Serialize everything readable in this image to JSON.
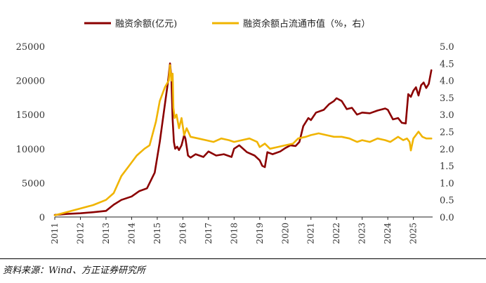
{
  "chart_data": {
    "type": "line",
    "title": "",
    "legend_position": "top",
    "grid": false,
    "x_axis": {
      "ticks": [
        "2011",
        "2012",
        "2013",
        "2014",
        "2015",
        "2016",
        "2017",
        "2018",
        "2019",
        "2020",
        "2021",
        "2022",
        "2023",
        "2024",
        "2025"
      ],
      "range": [
        2011.0,
        2025.75
      ]
    },
    "y_left": {
      "range": [
        0,
        25000
      ],
      "ticks": [
        "0",
        "5000",
        "10000",
        "15000",
        "20000",
        "25000"
      ]
    },
    "y_right": {
      "range": [
        0.0,
        5.0
      ],
      "ticks": [
        "0.0",
        "0.5",
        "1.0",
        "1.5",
        "2.0",
        "2.5",
        "3.0",
        "3.5",
        "4.0",
        "4.5",
        "5.0"
      ]
    },
    "series": [
      {
        "name": "融资余额(亿元)",
        "axis": "left",
        "color": "#8b0000",
        "x": [
          2011.0,
          2011.5,
          2012.0,
          2012.5,
          2013.0,
          2013.3,
          2013.6,
          2014.0,
          2014.3,
          2014.6,
          2014.9,
          2015.1,
          2015.3,
          2015.42,
          2015.5,
          2015.55,
          2015.6,
          2015.65,
          2015.7,
          2015.78,
          2015.85,
          2015.95,
          2016.05,
          2016.1,
          2016.2,
          2016.3,
          2016.5,
          2016.8,
          2017.0,
          2017.3,
          2017.6,
          2017.9,
          2018.0,
          2018.2,
          2018.5,
          2018.8,
          2019.0,
          2019.1,
          2019.2,
          2019.3,
          2019.5,
          2019.8,
          2020.0,
          2020.2,
          2020.4,
          2020.55,
          2020.7,
          2020.9,
          2021.0,
          2021.2,
          2021.5,
          2021.7,
          2021.9,
          2022.0,
          2022.2,
          2022.4,
          2022.6,
          2022.8,
          2023.0,
          2023.3,
          2023.6,
          2023.9,
          2024.0,
          2024.2,
          2024.4,
          2024.55,
          2024.7,
          2024.8,
          2024.9,
          2025.0,
          2025.1,
          2025.2,
          2025.3,
          2025.4,
          2025.5,
          2025.6,
          2025.7
        ],
        "values": [
          300,
          450,
          550,
          700,
          900,
          1800,
          2500,
          3000,
          3800,
          4200,
          6500,
          11000,
          16500,
          19800,
          22500,
          20500,
          14300,
          11000,
          10000,
          10300,
          9800,
          10500,
          12000,
          11500,
          9000,
          8700,
          9200,
          8800,
          9600,
          9000,
          9200,
          8800,
          10000,
          10500,
          9500,
          9000,
          8300,
          7500,
          7300,
          9500,
          9200,
          9600,
          10100,
          10500,
          10400,
          11000,
          13300,
          14500,
          14200,
          15300,
          15700,
          16500,
          17000,
          17400,
          17000,
          15800,
          16000,
          15000,
          15300,
          15200,
          15600,
          15900,
          15700,
          14300,
          14500,
          13800,
          13700,
          18000,
          17600,
          18500,
          19000,
          17800,
          19300,
          19700,
          18900,
          19500,
          21500
        ]
      },
      {
        "name": "融资余额占流通市值（%，右）",
        "axis": "right",
        "color": "#f0b400",
        "x": [
          2011.0,
          2011.5,
          2012.0,
          2012.5,
          2013.0,
          2013.3,
          2013.6,
          2013.9,
          2014.2,
          2014.5,
          2014.7,
          2014.95,
          2015.1,
          2015.3,
          2015.45,
          2015.5,
          2015.55,
          2015.6,
          2015.63,
          2015.68,
          2015.75,
          2015.85,
          2015.95,
          2016.05,
          2016.15,
          2016.3,
          2016.6,
          2016.9,
          2017.2,
          2017.5,
          2017.8,
          2018.0,
          2018.3,
          2018.6,
          2018.9,
          2019.0,
          2019.2,
          2019.4,
          2019.7,
          2020.0,
          2020.3,
          2020.5,
          2020.8,
          2021.0,
          2021.3,
          2021.6,
          2021.9,
          2022.2,
          2022.5,
          2022.8,
          2023.0,
          2023.3,
          2023.6,
          2023.9,
          2024.1,
          2024.4,
          2024.6,
          2024.75,
          2024.85,
          2024.9,
          2025.0,
          2025.2,
          2025.35,
          2025.5,
          2025.7
        ],
        "values": [
          0.05,
          0.15,
          0.25,
          0.35,
          0.5,
          0.7,
          1.2,
          1.5,
          1.8,
          2.0,
          2.1,
          2.8,
          3.4,
          3.8,
          4.0,
          4.45,
          4.0,
          4.2,
          3.2,
          2.9,
          3.0,
          2.6,
          2.9,
          2.4,
          2.6,
          2.35,
          2.3,
          2.25,
          2.2,
          2.3,
          2.25,
          2.2,
          2.25,
          2.3,
          2.2,
          2.05,
          2.15,
          2.0,
          2.05,
          2.1,
          2.15,
          2.3,
          2.35,
          2.4,
          2.45,
          2.4,
          2.35,
          2.35,
          2.3,
          2.2,
          2.25,
          2.2,
          2.3,
          2.25,
          2.2,
          2.35,
          2.25,
          2.3,
          2.2,
          1.95,
          2.3,
          2.5,
          2.35,
          2.3,
          2.3
        ]
      }
    ],
    "source": "资料来源：Wind、方正证券研究所"
  }
}
